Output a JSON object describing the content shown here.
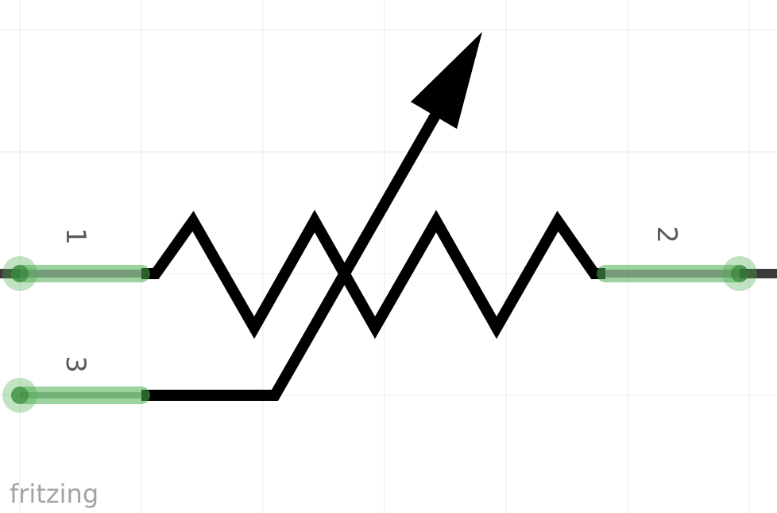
{
  "diagram": {
    "component": "variable-resistor",
    "colors": {
      "background": "#ffffff",
      "grid": "#ebebeb",
      "symbol": "#000000",
      "pin_core": "#3a3a3a",
      "pin_highlight": "#4caf50",
      "pin_label": "#5a5a5a",
      "brand": "#a3a3a3"
    },
    "pins": [
      {
        "label": "1"
      },
      {
        "label": "2"
      },
      {
        "label": "3"
      }
    ]
  },
  "watermark": {
    "text": "fritzing"
  }
}
